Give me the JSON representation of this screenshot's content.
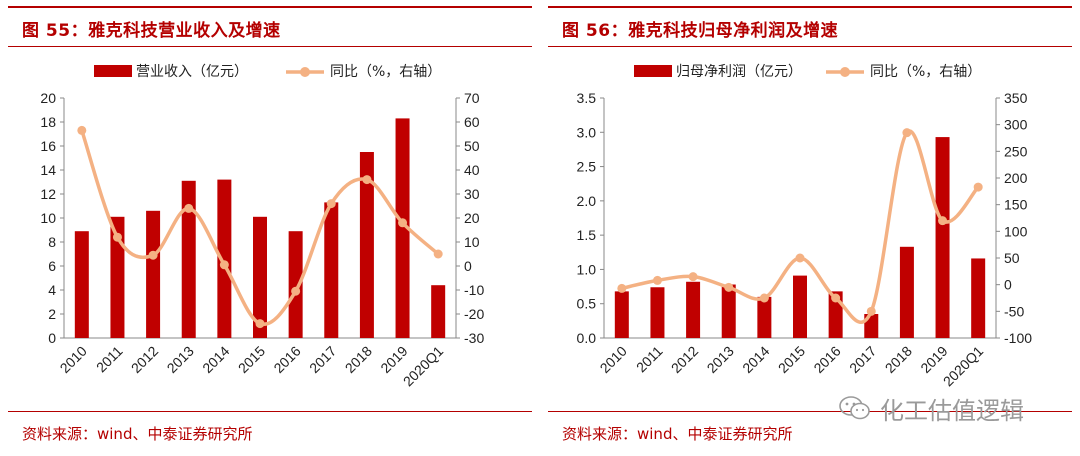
{
  "panels": [
    {
      "title": "图 55：雅克科技营业收入及增速",
      "source": "资料来源：wind、中泰证券研究所"
    },
    {
      "title": "图 56：雅克科技归母净利润及增速",
      "source": "资料来源：wind、中泰证券研究所"
    }
  ],
  "watermark": {
    "text": "化工估值逻辑",
    "icon": "wechat-icon"
  },
  "colors": {
    "bar": "#c00000",
    "line": "#f4b183",
    "accent": "#b40000"
  },
  "chart_data": [
    {
      "type": "bar+line",
      "categories": [
        "2010",
        "2011",
        "2012",
        "2013",
        "2014",
        "2015",
        "2016",
        "2017",
        "2018",
        "2019",
        "2020Q1"
      ],
      "series": [
        {
          "name": "营业收入（亿元）",
          "type": "bar",
          "axis": "left",
          "values": [
            8.9,
            10.1,
            10.6,
            13.1,
            13.2,
            10.1,
            8.9,
            11.3,
            15.5,
            18.3,
            4.4
          ]
        },
        {
          "name": "同比（%，右轴）",
          "type": "line",
          "axis": "right",
          "values": [
            56.5,
            12,
            4.5,
            24,
            0.5,
            -24,
            -10.5,
            26,
            36,
            18,
            5
          ]
        }
      ],
      "yleft": {
        "min": 0,
        "max": 20,
        "step": 2,
        "ticks": [
          "0",
          "2",
          "4",
          "6",
          "8",
          "10",
          "12",
          "14",
          "16",
          "18",
          "20"
        ]
      },
      "yright": {
        "min": -30,
        "max": 70,
        "step": 10,
        "ticks": [
          "-30",
          "-20",
          "-10",
          "0",
          "10",
          "20",
          "30",
          "40",
          "50",
          "60",
          "70"
        ]
      },
      "grid": false,
      "legend": "top"
    },
    {
      "type": "bar+line",
      "categories": [
        "2010",
        "2011",
        "2012",
        "2013",
        "2014",
        "2015",
        "2016",
        "2017",
        "2018",
        "2019",
        "2020Q1"
      ],
      "series": [
        {
          "name": "归母净利润（亿元）",
          "type": "bar",
          "axis": "left",
          "values": [
            0.68,
            0.74,
            0.82,
            0.78,
            0.6,
            0.91,
            0.68,
            0.35,
            1.33,
            2.93,
            1.16
          ]
        },
        {
          "name": "同比（%，右轴）",
          "type": "line",
          "axis": "right",
          "values": [
            -7,
            8,
            15,
            -5,
            -25,
            50,
            -25,
            -50,
            285,
            120,
            183
          ]
        }
      ],
      "yleft": {
        "min": 0,
        "max": 3.5,
        "step": 0.5,
        "ticks": [
          "0.0",
          "0.5",
          "1.0",
          "1.5",
          "2.0",
          "2.5",
          "3.0",
          "3.5"
        ]
      },
      "yright": {
        "min": -100,
        "max": 350,
        "step": 50,
        "ticks": [
          "-100",
          "-50",
          "0",
          "50",
          "100",
          "150",
          "200",
          "250",
          "300",
          "350"
        ]
      },
      "grid": false,
      "legend": "top"
    }
  ]
}
